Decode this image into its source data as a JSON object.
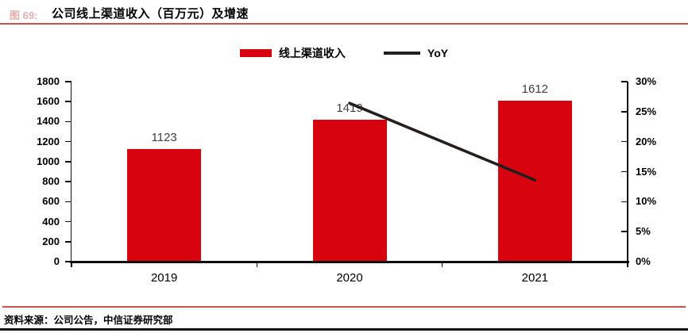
{
  "figure": {
    "label": "图 69:"
  },
  "header": {
    "title": "公司线上渠道收入（百万元）及增速"
  },
  "legend": {
    "items": [
      {
        "label": "线上渠道收入"
      },
      {
        "label": "YoY"
      }
    ]
  },
  "chart_data": {
    "type": "bar",
    "title": "公司线上渠道收入（百万元）及增速",
    "categories": [
      "2019",
      "2020",
      "2021"
    ],
    "series": [
      {
        "name": "线上渠道收入",
        "type": "bar",
        "axis": "left",
        "values": [
          1123,
          1419,
          1612
        ],
        "data_labels": [
          "1123",
          "1419",
          "1612"
        ],
        "color": "#d7030f"
      },
      {
        "name": "YoY",
        "type": "line",
        "axis": "right",
        "values": [
          null,
          26.4,
          13.6
        ],
        "color": "#231f1c"
      }
    ],
    "left_axis": {
      "min": 0,
      "max": 1800,
      "step": 200,
      "tick_labels": [
        "0",
        "200",
        "400",
        "600",
        "800",
        "1000",
        "1200",
        "1400",
        "1600",
        "1800"
      ]
    },
    "right_axis": {
      "min": 0,
      "max": 30,
      "step": 5,
      "tick_labels": [
        "0%",
        "5%",
        "10%",
        "15%",
        "20%",
        "25%",
        "30%"
      ]
    },
    "legend_position": "top",
    "grid": false,
    "xlabel": "",
    "ylabel": ""
  },
  "footer": {
    "source": "资料来源：公司公告，中信证券研究部"
  },
  "colors": {
    "bar": "#d7030f",
    "line": "#231f1c",
    "accent_rule": "#c9514f",
    "data_label": "#3f3f3f",
    "axis": "#0f0f0f",
    "figure_label": "#dc9b9b"
  }
}
